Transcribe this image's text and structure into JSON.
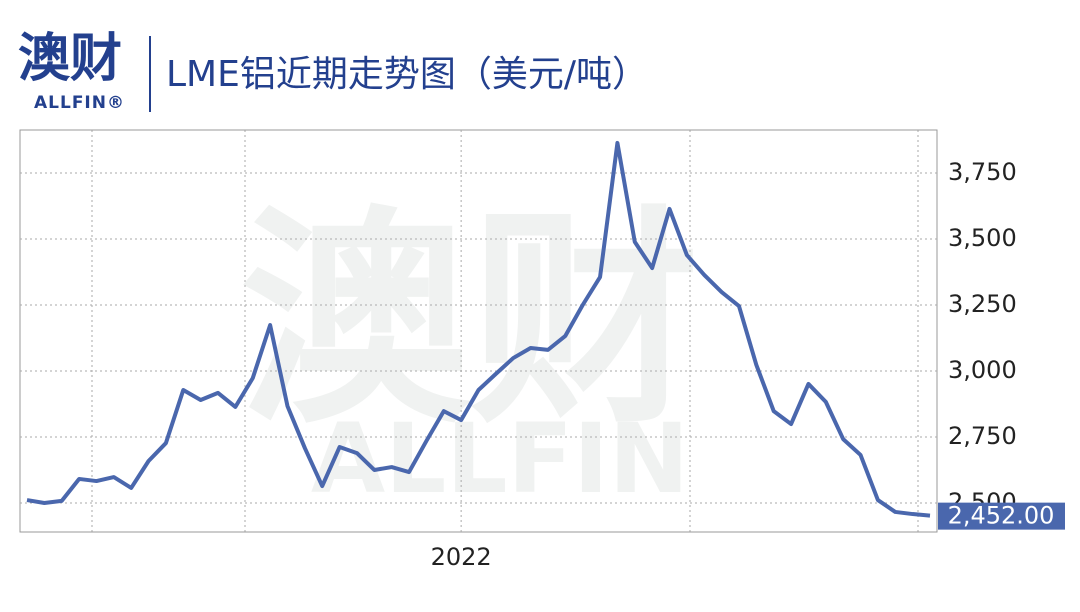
{
  "header": {
    "logo": "澳财",
    "logo_sub": "ALLFIN®"
  },
  "watermark": {
    "main": "澳财",
    "sub": "ALLFIN"
  },
  "chart_data": {
    "type": "line",
    "title": "LME铝近期走势图（美元/吨）",
    "categories": [
      null,
      null,
      null,
      null,
      null,
      null,
      null,
      null,
      null,
      null,
      null,
      null,
      null,
      null,
      null,
      null,
      null,
      null,
      null,
      null,
      null,
      null,
      null,
      null,
      null,
      "2022",
      null,
      null,
      null,
      null,
      null,
      null,
      null,
      null,
      null,
      null,
      null,
      null,
      null,
      null,
      null,
      null,
      null,
      null,
      null,
      null,
      null,
      null,
      null,
      null,
      null,
      null,
      null
    ],
    "series": [
      {
        "name": "LME铝",
        "color": "#4a67ad",
        "values": [
          2511,
          2500,
          2508,
          2591,
          2583,
          2598,
          2557,
          2659,
          2727,
          2928,
          2890,
          2917,
          2864,
          2973,
          3174,
          2867,
          2708,
          2564,
          2712,
          2689,
          2625,
          2636,
          2617,
          2735,
          2848,
          2814,
          2928,
          2989,
          3049,
          3087,
          3080,
          3133,
          3250,
          3356,
          3864,
          3489,
          3390,
          3614,
          3439,
          3364,
          3299,
          3246,
          3023,
          2848,
          2799,
          2951,
          2883,
          2742,
          2682,
          2511,
          2466,
          2458,
          2452
        ],
        "value_labels": [
          null,
          null,
          null,
          null,
          null,
          null,
          null,
          null,
          null,
          null,
          null,
          null,
          null,
          null,
          null,
          null,
          null,
          null,
          null,
          null,
          null,
          null,
          null,
          null,
          null,
          null,
          null,
          null,
          null,
          null,
          null,
          null,
          null,
          null,
          null,
          null,
          null,
          null,
          null,
          null,
          null,
          null,
          null,
          null,
          null,
          null,
          null,
          null,
          null,
          null,
          null,
          null,
          "2,452.00"
        ]
      }
    ],
    "ylim": [
      2390,
      3913
    ],
    "yticks": [
      {
        "value": 2500,
        "label": "2,500"
      },
      {
        "value": 2750,
        "label": "2,750"
      },
      {
        "value": 3000,
        "label": "3,000"
      },
      {
        "value": 3250,
        "label": "3,250"
      },
      {
        "value": 3500,
        "label": "3,500"
      },
      {
        "value": 3750,
        "label": "3,750"
      }
    ],
    "grid": true
  }
}
